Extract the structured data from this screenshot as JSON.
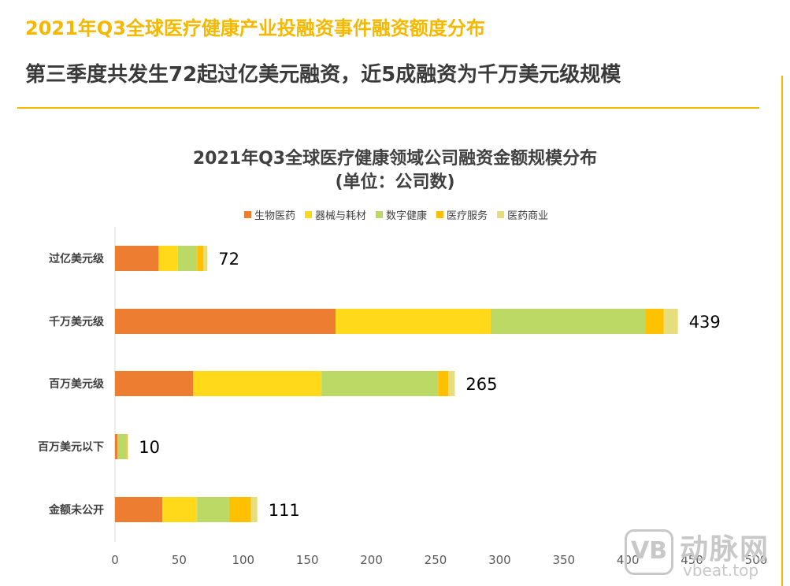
{
  "header": {
    "title": "2021年Q3全球医疗健康产业投融资事件融资额度分布",
    "subtitle": "第三季度共发生72起过亿美元融资，近5成融资为千万美元级规模"
  },
  "watermark": {
    "logo_text": "VB",
    "cn": "动脉网",
    "en": "vbeat.top"
  },
  "chart_data": {
    "type": "bar",
    "orientation": "horizontal",
    "stacked": true,
    "title": "2021年Q3全球医疗健康领域公司融资金额规模分布",
    "subtitle": "(单位：公司数)",
    "categories": [
      "过亿美元级",
      "千万美元级",
      "百万美元级",
      "百万美元以下",
      "金额未公开"
    ],
    "series": [
      {
        "name": "生物医药",
        "color": "#ED7D31",
        "values": [
          34,
          172,
          61,
          2,
          37
        ]
      },
      {
        "name": "器械与耗材",
        "color": "#FFD91A",
        "values": [
          15,
          121,
          100,
          0,
          27
        ]
      },
      {
        "name": "数字健康",
        "color": "#BCD865",
        "values": [
          15,
          121,
          91,
          7,
          25
        ]
      },
      {
        "name": "医疗服务",
        "color": "#FFC000",
        "values": [
          5,
          14,
          8,
          1,
          17
        ]
      },
      {
        "name": "医药商业",
        "color": "#E6DE7E",
        "values": [
          3,
          11,
          5,
          0,
          5
        ]
      }
    ],
    "totals": [
      72,
      439,
      265,
      10,
      111
    ],
    "xlim": [
      0,
      500
    ],
    "xticks": [
      0,
      50,
      100,
      150,
      200,
      250,
      300,
      350,
      400,
      450,
      500
    ],
    "legend_position": "top"
  }
}
